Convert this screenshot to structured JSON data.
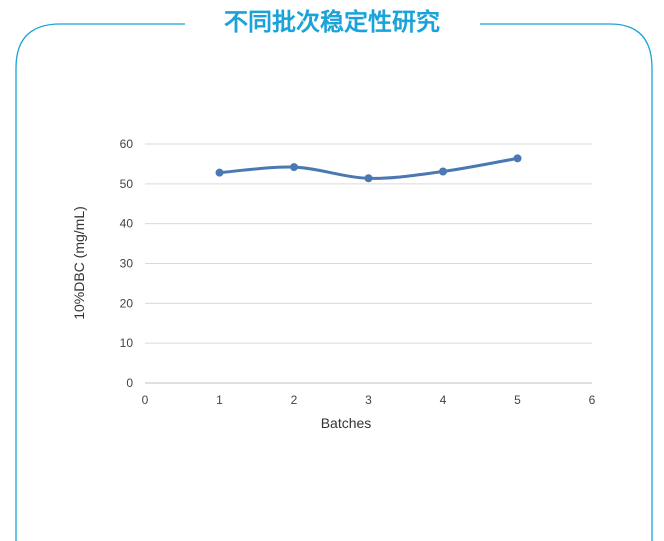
{
  "panel": {
    "title": "不同批次稳定性研究",
    "accent_color": "#1aa3d9",
    "border_color": "#1aa3d9"
  },
  "chart_data": {
    "type": "line",
    "title": "",
    "xlabel": "Batches",
    "ylabel": "10%DBC (mg/mL)",
    "xlim": [
      0,
      6
    ],
    "ylim": [
      0,
      60
    ],
    "x_ticks": [
      0,
      1,
      2,
      3,
      4,
      5,
      6
    ],
    "y_ticks": [
      0,
      10,
      20,
      30,
      40,
      50,
      60
    ],
    "grid": true,
    "legend": "none",
    "smooth": true,
    "series": [
      {
        "x": [
          1,
          2,
          3,
          4,
          5
        ],
        "values": [
          52.8,
          54.2,
          51.4,
          53.1,
          56.4
        ],
        "color": "#4a78b3"
      }
    ]
  }
}
